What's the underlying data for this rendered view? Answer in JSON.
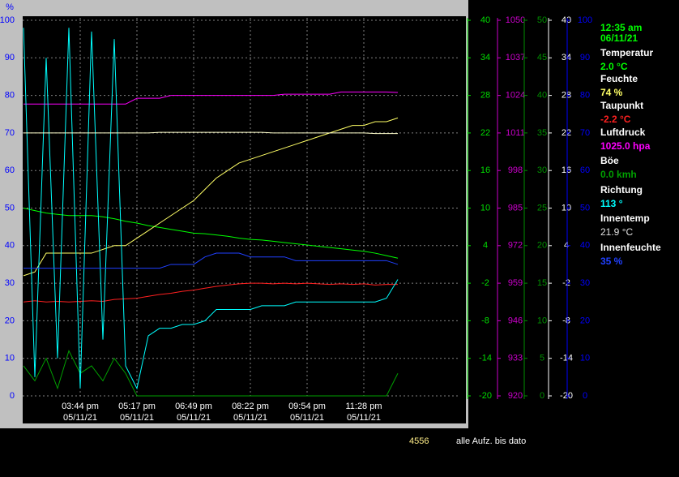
{
  "chart_data": {
    "type": "line",
    "y_label": "%",
    "categories": [
      null,
      null,
      null,
      null,
      null,
      "03:44 pm",
      null,
      null,
      null,
      null,
      "05:17 pm",
      null,
      null,
      null,
      null,
      "06:49 pm",
      null,
      null,
      null,
      null,
      "08:22 pm",
      null,
      null,
      null,
      null,
      "09:54 pm",
      null,
      null,
      null,
      null,
      "11:28 pm",
      null,
      null,
      null
    ],
    "category_dates": [
      null,
      null,
      null,
      null,
      null,
      "05/11/21",
      null,
      null,
      null,
      null,
      "05/11/21",
      null,
      null,
      null,
      null,
      "05/11/21",
      null,
      null,
      null,
      null,
      "05/11/21",
      null,
      null,
      null,
      null,
      "05/11/21",
      null,
      null,
      null,
      null,
      "05/11/21",
      null,
      null,
      null
    ],
    "grid": true,
    "ylim": [
      0,
      100
    ],
    "yticks": [
      0,
      10,
      20,
      30,
      40,
      50,
      60,
      70,
      80,
      90,
      100
    ],
    "ycolor": "#0000ff",
    "right_axes": [
      {
        "key": "green",
        "color": "#00dd00",
        "lim": [
          -20,
          40
        ],
        "ticks": [
          -20,
          -14,
          -8,
          -2,
          4,
          10,
          16,
          22,
          28,
          34,
          40
        ]
      },
      {
        "key": "magenta",
        "color": "#cc00cc",
        "lim": [
          920,
          1050
        ],
        "ticks": [
          920,
          933,
          946,
          959,
          972,
          985,
          998,
          1011,
          1024,
          1037,
          1050
        ]
      },
      {
        "key": "darkgreen",
        "color": "#009000",
        "lim": [
          0,
          50
        ],
        "ticks": [
          0,
          5,
          10,
          15,
          20,
          25,
          30,
          35,
          40,
          45,
          50
        ]
      },
      {
        "key": "white",
        "color": "#ffffff",
        "lim": [
          -20,
          40
        ],
        "ticks": [
          -20,
          -14,
          -8,
          -2,
          4,
          10,
          16,
          22,
          28,
          34,
          40
        ]
      },
      {
        "key": "blue",
        "color": "#0000ff",
        "lim": [
          0,
          100
        ],
        "ticks": [
          0,
          10,
          20,
          30,
          40,
          50,
          60,
          70,
          80,
          90,
          100
        ]
      }
    ],
    "series": [
      {
        "name": "Temperatur",
        "reading": "2.0 °C",
        "color": "#00ff00",
        "axis": "green",
        "values": [
          10.0,
          9.6,
          9.2,
          9.0,
          8.8,
          8.8,
          8.8,
          8.6,
          8.3,
          7.9,
          7.6,
          7.2,
          6.9,
          6.6,
          6.3,
          6.0,
          5.9,
          5.7,
          5.5,
          5.2,
          5.0,
          4.9,
          4.7,
          4.5,
          4.3,
          4.1,
          3.9,
          3.7,
          3.5,
          3.3,
          3.1,
          2.8,
          2.4,
          2.0
        ]
      },
      {
        "name": "Feuchte",
        "reading": "74 %",
        "color": "#ffff66",
        "axis": "y",
        "values": [
          32,
          33,
          38,
          38,
          38,
          38,
          38,
          39,
          40,
          40,
          42,
          44,
          46,
          48,
          50,
          52,
          55,
          58,
          60,
          62,
          63,
          64,
          65,
          66,
          67,
          68,
          69,
          70,
          71,
          72,
          72,
          73,
          73,
          74
        ]
      },
      {
        "name": "Taupunkt",
        "reading": "-2.2 °C",
        "color": "#ff2020",
        "axis": "white",
        "values": [
          -5.0,
          -4.8,
          -5.0,
          -4.9,
          -5.0,
          -4.9,
          -4.8,
          -4.9,
          -4.6,
          -4.5,
          -4.4,
          -4.1,
          -3.8,
          -3.6,
          -3.3,
          -3.1,
          -2.8,
          -2.5,
          -2.3,
          -2.1,
          -2.0,
          -2.0,
          -2.1,
          -2.0,
          -2.1,
          -2.0,
          -2.1,
          -2.2,
          -2.1,
          -2.2,
          -2.1,
          -2.3,
          -2.2,
          -2.2
        ]
      },
      {
        "name": "Luftdruck",
        "reading": "1025.0 hpa",
        "color": "#ff00ff",
        "axis": "magenta",
        "values": [
          1021,
          1021,
          1021,
          1021,
          1021,
          1021,
          1021,
          1021,
          1021,
          1021,
          1023,
          1023,
          1023,
          1024,
          1024,
          1024,
          1024,
          1024,
          1024,
          1024,
          1024,
          1024,
          1024,
          1024.4,
          1024.4,
          1024.4,
          1024.4,
          1024.4,
          1025.2,
          1025.2,
          1025.2,
          1025.2,
          1025.2,
          1025.0
        ]
      },
      {
        "name": "Böe",
        "reading": "0.0 kmh",
        "color": "#00a000",
        "axis": "darkgreen",
        "values": [
          4,
          2,
          5,
          1,
          6,
          3,
          4,
          2,
          5,
          3,
          0,
          0,
          0,
          0,
          0,
          0,
          0,
          0,
          0,
          0,
          0,
          0,
          0,
          0,
          0,
          0,
          0,
          0,
          0,
          0,
          0,
          0,
          0,
          3
        ]
      },
      {
        "name": "Richtung",
        "reading": "113 °",
        "color": "#00ffff",
        "axis": "y",
        "values": [
          98,
          5,
          90,
          10,
          98,
          2,
          97,
          15,
          95,
          8,
          2,
          16,
          18,
          18,
          19,
          19,
          20,
          23,
          23,
          23,
          23,
          24,
          24,
          24,
          25,
          25,
          25,
          25,
          25,
          25,
          25,
          25,
          26,
          31
        ]
      },
      {
        "name": "Innentemp",
        "reading": "21.9 °C",
        "color": "#ffffcc",
        "axis": "white",
        "values": [
          22.0,
          22.0,
          22.0,
          22.0,
          22.0,
          22.0,
          22.0,
          22.0,
          22.0,
          22.0,
          22.0,
          22.0,
          22.1,
          22.1,
          22.1,
          22.1,
          22.1,
          22.1,
          22.1,
          22.1,
          22.1,
          22.1,
          22.0,
          22.0,
          22.0,
          22.0,
          22.0,
          22.0,
          22.0,
          22.0,
          22.0,
          21.9,
          21.9,
          21.9
        ]
      },
      {
        "name": "Innenfeuchte",
        "reading": "35 %",
        "color": "#2040ff",
        "axis": "blue",
        "values": [
          34,
          34,
          34,
          34,
          34,
          34,
          34,
          34,
          34,
          34,
          34,
          34,
          34,
          35,
          35,
          35,
          37,
          38,
          38,
          38,
          37,
          37,
          37,
          37,
          36,
          36,
          36,
          36,
          36,
          36,
          36,
          36,
          36,
          35
        ]
      }
    ]
  },
  "panel": {
    "time": "12:35 am",
    "date": "06/11/21"
  },
  "status": {
    "count": 4556,
    "text": "alle Aufz. bis dato"
  }
}
